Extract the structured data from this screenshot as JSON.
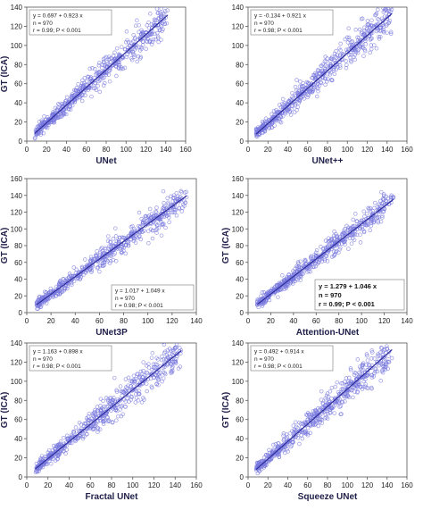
{
  "colors": {
    "points": "#7777dd",
    "fit_line": "#2c2c9a",
    "frame": "#555555",
    "background": "#ffffff"
  },
  "chart_data": [
    {
      "type": "scatter",
      "xlabel": "UNet",
      "ylabel": "GT (ICA)",
      "xlim": [
        0,
        160
      ],
      "ylim": [
        0,
        140
      ],
      "xticks": [
        0,
        20,
        40,
        60,
        80,
        100,
        120,
        140,
        160
      ],
      "yticks": [
        0,
        20,
        40,
        60,
        80,
        100,
        120,
        140
      ],
      "fit": {
        "intercept": 0.697,
        "slope": 0.923,
        "x_range": [
          8,
          142
        ]
      },
      "annotation": [
        "y = 0.697  +  0.923  x",
        "n = 970",
        "r = 0.99; P < 0.001"
      ],
      "annotation_position": "top-left",
      "annotation_bold": false,
      "n": 970,
      "scatter_points": [
        [
          10,
          9
        ],
        [
          18,
          17
        ],
        [
          22,
          19
        ],
        [
          28,
          27
        ],
        [
          33,
          30
        ],
        [
          37,
          33
        ],
        [
          42,
          40
        ],
        [
          48,
          43
        ],
        [
          55,
          52
        ],
        [
          60,
          55
        ],
        [
          66,
          62
        ],
        [
          72,
          65
        ],
        [
          78,
          73
        ],
        [
          84,
          77
        ],
        [
          90,
          84
        ],
        [
          96,
          88
        ],
        [
          102,
          95
        ],
        [
          108,
          100
        ],
        [
          114,
          107
        ],
        [
          120,
          110
        ],
        [
          126,
          118
        ],
        [
          132,
          121
        ],
        [
          138,
          128
        ],
        [
          26,
          28
        ],
        [
          45,
          46
        ],
        [
          63,
          56
        ],
        [
          81,
          78
        ],
        [
          99,
          96
        ],
        [
          117,
          104
        ],
        [
          135,
          130
        ]
      ]
    },
    {
      "type": "scatter",
      "xlabel": "UNet++",
      "ylabel": "",
      "xlim": [
        0,
        160
      ],
      "ylim": [
        0,
        140
      ],
      "xticks": [
        0,
        20,
        40,
        60,
        80,
        100,
        120,
        140,
        160
      ],
      "yticks": [
        0,
        20,
        40,
        60,
        80,
        100,
        120,
        140
      ],
      "fit": {
        "intercept": -0.134,
        "slope": 0.921,
        "x_range": [
          8,
          145
        ]
      },
      "annotation": [
        "y = -0.134  +  0.921  x",
        "n = 970",
        "r = 0.98; P < 0.001"
      ],
      "annotation_position": "top-left",
      "annotation_bold": false,
      "n": 970,
      "scatter_points": [
        [
          10,
          10
        ],
        [
          16,
          13
        ],
        [
          22,
          21
        ],
        [
          28,
          25
        ],
        [
          34,
          30
        ],
        [
          40,
          38
        ],
        [
          46,
          41
        ],
        [
          52,
          49
        ],
        [
          58,
          52
        ],
        [
          64,
          60
        ],
        [
          70,
          63
        ],
        [
          76,
          71
        ],
        [
          82,
          74
        ],
        [
          88,
          82
        ],
        [
          94,
          85
        ],
        [
          100,
          93
        ],
        [
          106,
          97
        ],
        [
          112,
          104
        ],
        [
          118,
          108
        ],
        [
          124,
          115
        ],
        [
          130,
          118
        ],
        [
          136,
          126
        ],
        [
          142,
          132
        ],
        [
          30,
          30
        ],
        [
          50,
          44
        ],
        [
          68,
          66
        ],
        [
          86,
          76
        ],
        [
          104,
          98
        ],
        [
          122,
          110
        ],
        [
          140,
          128
        ]
      ]
    },
    {
      "type": "scatter",
      "xlabel": "UNet3P",
      "ylabel": "GT (ICA)",
      "xlim": [
        0,
        140
      ],
      "ylim": [
        0,
        160
      ],
      "xticks": [
        0,
        20,
        40,
        60,
        80,
        100,
        120,
        140
      ],
      "yticks": [
        0,
        20,
        40,
        60,
        80,
        100,
        120,
        140,
        160
      ],
      "fit": {
        "intercept": 1.017,
        "slope": 1.049,
        "x_range": [
          8,
          132
        ]
      },
      "annotation": [
        "y = 1.017  +  1.049  x",
        "n = 970",
        "r = 0.98; P < 0.001"
      ],
      "annotation_position": "bottom-right",
      "annotation_bold": false,
      "n": 970,
      "scatter_points": [
        [
          10,
          11
        ],
        [
          14,
          15
        ],
        [
          18,
          21
        ],
        [
          22,
          24
        ],
        [
          26,
          28
        ],
        [
          30,
          33
        ],
        [
          34,
          37
        ],
        [
          38,
          41
        ],
        [
          42,
          45
        ],
        [
          46,
          49
        ],
        [
          50,
          54
        ],
        [
          54,
          57
        ],
        [
          58,
          62
        ],
        [
          62,
          66
        ],
        [
          66,
          70
        ],
        [
          70,
          74
        ],
        [
          74,
          79
        ],
        [
          78,
          82
        ],
        [
          82,
          87
        ],
        [
          86,
          91
        ],
        [
          90,
          95
        ],
        [
          94,
          99
        ],
        [
          98,
          104
        ],
        [
          102,
          107
        ],
        [
          106,
          112
        ],
        [
          110,
          116
        ],
        [
          116,
          123
        ],
        [
          122,
          129
        ],
        [
          128,
          136
        ],
        [
          16,
          24
        ],
        [
          24,
          20
        ],
        [
          36,
          44
        ],
        [
          44,
          40
        ],
        [
          56,
          64
        ],
        [
          64,
          60
        ],
        [
          76,
          86
        ],
        [
          84,
          80
        ],
        [
          96,
          108
        ],
        [
          104,
          98
        ]
      ]
    },
    {
      "type": "scatter",
      "xlabel": "Attention-UNet",
      "ylabel": "GT (ICA)",
      "xlim": [
        0,
        140
      ],
      "ylim": [
        0,
        160
      ],
      "xticks": [
        0,
        20,
        40,
        60,
        80,
        100,
        120,
        140
      ],
      "yticks": [
        0,
        20,
        40,
        60,
        80,
        100,
        120,
        140,
        160
      ],
      "fit": {
        "intercept": 1.279,
        "slope": 1.046,
        "x_range": [
          8,
          128
        ]
      },
      "annotation": [
        "y = 1.279  +  1.046  x",
        "n = 970",
        "r = 0.99; P < 0.001"
      ],
      "annotation_position": "bottom-right",
      "annotation_bold": true,
      "n": 970,
      "scatter_points": [
        [
          10,
          12
        ],
        [
          14,
          16
        ],
        [
          18,
          20
        ],
        [
          22,
          25
        ],
        [
          26,
          29
        ],
        [
          30,
          33
        ],
        [
          34,
          37
        ],
        [
          38,
          41
        ],
        [
          42,
          46
        ],
        [
          46,
          49
        ],
        [
          50,
          54
        ],
        [
          54,
          58
        ],
        [
          58,
          62
        ],
        [
          62,
          66
        ],
        [
          66,
          70
        ],
        [
          70,
          75
        ],
        [
          74,
          79
        ],
        [
          78,
          83
        ],
        [
          82,
          87
        ],
        [
          86,
          91
        ],
        [
          90,
          96
        ],
        [
          94,
          100
        ],
        [
          98,
          104
        ],
        [
          102,
          108
        ],
        [
          106,
          113
        ],
        [
          110,
          116
        ],
        [
          116,
          123
        ],
        [
          122,
          130
        ],
        [
          128,
          138
        ],
        [
          20,
          26
        ],
        [
          40,
          40
        ],
        [
          60,
          68
        ],
        [
          80,
          82
        ],
        [
          100,
          110
        ],
        [
          120,
          124
        ]
      ]
    },
    {
      "type": "scatter",
      "xlabel": "Fractal UNet",
      "ylabel": "GT (ICA)",
      "xlim": [
        0,
        160
      ],
      "ylim": [
        0,
        140
      ],
      "xticks": [
        0,
        20,
        40,
        60,
        80,
        100,
        120,
        140,
        160
      ],
      "yticks": [
        0,
        20,
        40,
        60,
        80,
        100,
        120,
        140
      ],
      "fit": {
        "intercept": 1.163,
        "slope": 0.898,
        "x_range": [
          8,
          146
        ]
      },
      "annotation": [
        "y = 1.163  +  0.898  x",
        "n = 970",
        "r = 0.98; P < 0.001"
      ],
      "annotation_position": "top-left",
      "annotation_bold": false,
      "n": 970,
      "scatter_points": [
        [
          10,
          10
        ],
        [
          16,
          16
        ],
        [
          22,
          21
        ],
        [
          28,
          26
        ],
        [
          34,
          32
        ],
        [
          40,
          37
        ],
        [
          46,
          42
        ],
        [
          52,
          48
        ],
        [
          58,
          53
        ],
        [
          64,
          58
        ],
        [
          70,
          64
        ],
        [
          76,
          69
        ],
        [
          82,
          75
        ],
        [
          88,
          80
        ],
        [
          94,
          86
        ],
        [
          100,
          91
        ],
        [
          106,
          96
        ],
        [
          112,
          102
        ],
        [
          118,
          107
        ],
        [
          124,
          112
        ],
        [
          130,
          118
        ],
        [
          136,
          123
        ],
        [
          142,
          129
        ],
        [
          30,
          33
        ],
        [
          48,
          40
        ],
        [
          66,
          62
        ],
        [
          84,
          70
        ],
        [
          102,
          100
        ],
        [
          120,
          104
        ],
        [
          140,
          135
        ]
      ]
    },
    {
      "type": "scatter",
      "xlabel": "Squeeze UNet",
      "ylabel": "GT (ICA)",
      "xlim": [
        0,
        160
      ],
      "ylim": [
        0,
        140
      ],
      "xticks": [
        0,
        20,
        40,
        60,
        80,
        100,
        120,
        140,
        160
      ],
      "yticks": [
        0,
        20,
        40,
        60,
        80,
        100,
        120,
        140
      ],
      "fit": {
        "intercept": 0.492,
        "slope": 0.914,
        "x_range": [
          8,
          145
        ]
      },
      "annotation": [
        "y = 0.492  +  0.914  x",
        "n = 970",
        "r = 0.98; P < 0.001"
      ],
      "annotation_position": "top-left",
      "annotation_bold": false,
      "n": 970,
      "scatter_points": [
        [
          10,
          10
        ],
        [
          16,
          15
        ],
        [
          22,
          21
        ],
        [
          28,
          26
        ],
        [
          34,
          32
        ],
        [
          40,
          37
        ],
        [
          46,
          43
        ],
        [
          52,
          48
        ],
        [
          58,
          54
        ],
        [
          64,
          59
        ],
        [
          70,
          65
        ],
        [
          76,
          70
        ],
        [
          82,
          76
        ],
        [
          88,
          81
        ],
        [
          94,
          87
        ],
        [
          100,
          92
        ],
        [
          106,
          98
        ],
        [
          112,
          103
        ],
        [
          118,
          109
        ],
        [
          124,
          114
        ],
        [
          130,
          120
        ],
        [
          136,
          125
        ],
        [
          142,
          131
        ],
        [
          30,
          32
        ],
        [
          48,
          42
        ],
        [
          66,
          64
        ],
        [
          84,
          72
        ],
        [
          102,
          98
        ],
        [
          120,
          106
        ],
        [
          140,
          134
        ]
      ]
    }
  ]
}
